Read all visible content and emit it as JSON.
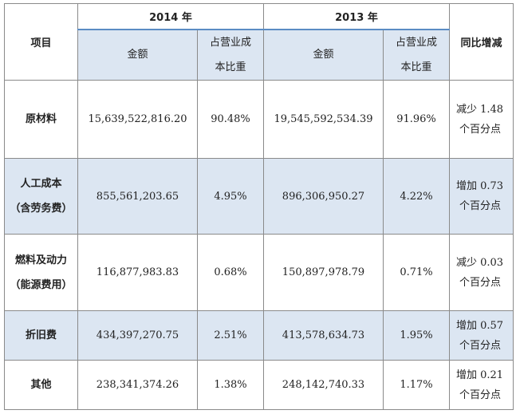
{
  "header": {
    "item": "项目",
    "year_2014": "2014 年",
    "year_2013": "2013 年",
    "change": "同比增减",
    "amount": "金额",
    "ratio_line1": "占营业成",
    "ratio_line2": "本比重"
  },
  "rows": [
    {
      "label1": "原材料",
      "label2": "",
      "amount_2014": "15,639,522,816.20",
      "ratio_2014": "90.48%",
      "amount_2013": "19,545,592,534.39",
      "ratio_2013": "91.96%",
      "change1": "减少 1.48",
      "change2": "个百分点"
    },
    {
      "label1": "人工成本",
      "label2": "（含劳务费）",
      "amount_2014": "855,561,203.65",
      "ratio_2014": "4.95%",
      "amount_2013": "896,306,950.27",
      "ratio_2013": "4.22%",
      "change1": "增加 0.73",
      "change2": "个百分点"
    },
    {
      "label1": "燃料及动力",
      "label2": "（能源费用）",
      "amount_2014": "116,877,983.83",
      "ratio_2014": "0.68%",
      "amount_2013": "150,897,978.79",
      "ratio_2013": "0.71%",
      "change1": "减少 0.03",
      "change2": "个百分点"
    },
    {
      "label1": "折旧费",
      "label2": "",
      "amount_2014": "434,397,270.75",
      "ratio_2014": "2.51%",
      "amount_2013": "413,578,634.73",
      "ratio_2013": "1.95%",
      "change1": "增加 0.57",
      "change2": "个百分点"
    },
    {
      "label1": "其他",
      "label2": "",
      "amount_2014": "238,341,374.26",
      "ratio_2014": "1.38%",
      "amount_2013": "248,142,740.33",
      "ratio_2013": "1.17%",
      "change1": "增加 0.21",
      "change2": "个百分点"
    }
  ]
}
